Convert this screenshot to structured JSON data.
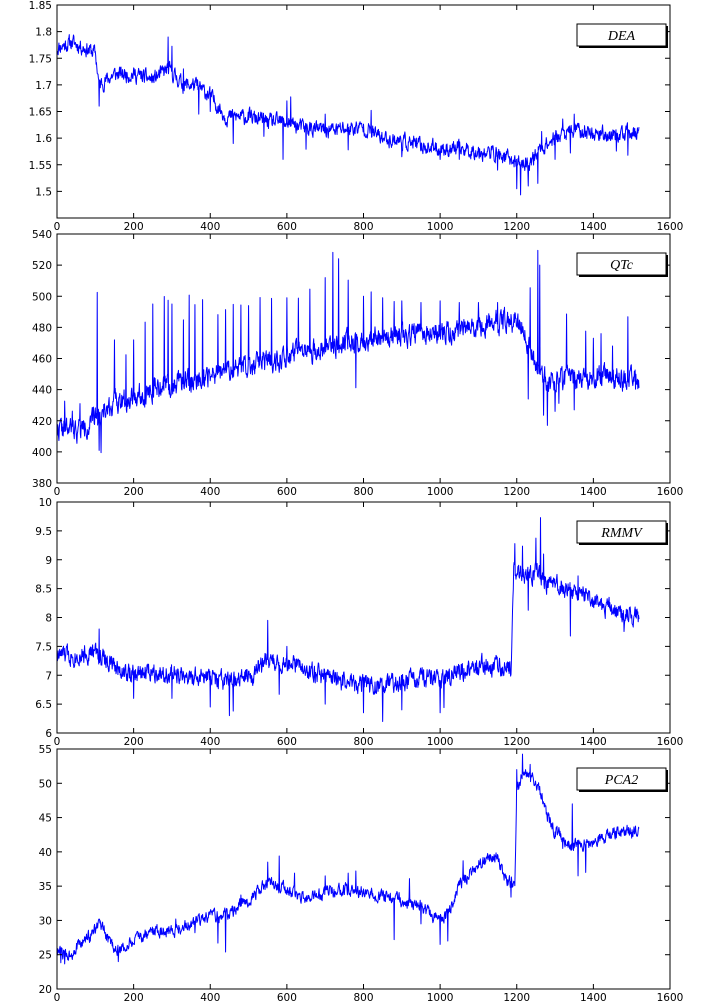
{
  "line_color": "#0000ff",
  "chart_data": [
    {
      "type": "line",
      "series": [
        {
          "name": "DEA"
        }
      ],
      "legend": "top-right",
      "xlim": [
        0,
        1600
      ],
      "ylim": [
        1.45,
        1.85
      ],
      "xticks": [
        0,
        200,
        400,
        600,
        800,
        1000,
        1200,
        1400,
        1600
      ],
      "yticks": [
        1.5,
        1.55,
        1.6,
        1.65,
        1.7,
        1.75,
        1.8,
        1.85
      ],
      "grid": false,
      "trend": [
        [
          0,
          1.77
        ],
        [
          20,
          1.775
        ],
        [
          40,
          1.78
        ],
        [
          70,
          1.77
        ],
        [
          100,
          1.76
        ],
        [
          110,
          1.7
        ],
        [
          150,
          1.72
        ],
        [
          200,
          1.72
        ],
        [
          250,
          1.71
        ],
        [
          290,
          1.73
        ],
        [
          330,
          1.7
        ],
        [
          360,
          1.7
        ],
        [
          400,
          1.68
        ],
        [
          440,
          1.64
        ],
        [
          500,
          1.64
        ],
        [
          560,
          1.63
        ],
        [
          600,
          1.63
        ],
        [
          640,
          1.62
        ],
        [
          700,
          1.615
        ],
        [
          800,
          1.62
        ],
        [
          850,
          1.6
        ],
        [
          900,
          1.595
        ],
        [
          950,
          1.585
        ],
        [
          1000,
          1.58
        ],
        [
          1050,
          1.58
        ],
        [
          1100,
          1.575
        ],
        [
          1150,
          1.57
        ],
        [
          1200,
          1.555
        ],
        [
          1230,
          1.55
        ],
        [
          1260,
          1.58
        ],
        [
          1300,
          1.6
        ],
        [
          1350,
          1.615
        ],
        [
          1400,
          1.61
        ],
        [
          1450,
          1.605
        ],
        [
          1520,
          1.61
        ]
      ],
      "noise": 0.012,
      "spikes": [
        [
          110,
          -0.04
        ],
        [
          290,
          0.06
        ],
        [
          300,
          0.05
        ],
        [
          330,
          0.03
        ],
        [
          370,
          -0.05
        ],
        [
          400,
          -0.03
        ],
        [
          460,
          -0.05
        ],
        [
          540,
          -0.03
        ],
        [
          590,
          -0.07
        ],
        [
          600,
          0.04
        ],
        [
          610,
          0.05
        ],
        [
          650,
          -0.04
        ],
        [
          700,
          0.03
        ],
        [
          760,
          -0.04
        ],
        [
          820,
          0.04
        ],
        [
          900,
          -0.03
        ],
        [
          1000,
          -0.02
        ],
        [
          1050,
          -0.02
        ],
        [
          1150,
          -0.03
        ],
        [
          1200,
          -0.05
        ],
        [
          1210,
          -0.06
        ],
        [
          1230,
          -0.04
        ],
        [
          1255,
          -0.06
        ],
        [
          1265,
          0.03
        ],
        [
          1300,
          -0.04
        ],
        [
          1320,
          0.03
        ],
        [
          1340,
          -0.04
        ],
        [
          1350,
          0.03
        ],
        [
          1460,
          -0.03
        ],
        [
          1490,
          -0.04
        ]
      ],
      "seed": 11
    },
    {
      "type": "line",
      "series": [
        {
          "name": "QTc"
        }
      ],
      "legend": "top-right",
      "xlim": [
        0,
        1600
      ],
      "ylim": [
        380,
        540
      ],
      "xticks": [
        0,
        200,
        400,
        600,
        800,
        1000,
        1200,
        1400,
        1600
      ],
      "yticks": [
        380,
        400,
        420,
        440,
        460,
        480,
        500,
        520,
        540
      ],
      "grid": false,
      "trend": [
        [
          0,
          415
        ],
        [
          50,
          414
        ],
        [
          90,
          418
        ],
        [
          100,
          424
        ],
        [
          120,
          426
        ],
        [
          150,
          432
        ],
        [
          200,
          436
        ],
        [
          250,
          440
        ],
        [
          300,
          443
        ],
        [
          350,
          446
        ],
        [
          400,
          449
        ],
        [
          450,
          452
        ],
        [
          500,
          456
        ],
        [
          550,
          458
        ],
        [
          600,
          461
        ],
        [
          650,
          464
        ],
        [
          700,
          467
        ],
        [
          750,
          470
        ],
        [
          800,
          472
        ],
        [
          850,
          474
        ],
        [
          900,
          475
        ],
        [
          950,
          476
        ],
        [
          1000,
          477
        ],
        [
          1050,
          478
        ],
        [
          1100,
          481
        ],
        [
          1150,
          484
        ],
        [
          1200,
          484
        ],
        [
          1220,
          476
        ],
        [
          1240,
          462
        ],
        [
          1260,
          452
        ],
        [
          1280,
          445
        ],
        [
          1300,
          446
        ],
        [
          1350,
          447
        ],
        [
          1400,
          448
        ],
        [
          1450,
          448
        ],
        [
          1520,
          446
        ]
      ],
      "noise": 6,
      "spikes": [
        [
          20,
          18
        ],
        [
          40,
          12
        ],
        [
          60,
          16
        ],
        [
          105,
          78
        ],
        [
          110,
          -24
        ],
        [
          115,
          -26
        ],
        [
          150,
          40
        ],
        [
          180,
          28
        ],
        [
          200,
          36
        ],
        [
          230,
          45
        ],
        [
          250,
          55
        ],
        [
          280,
          58
        ],
        [
          290,
          55
        ],
        [
          300,
          52
        ],
        [
          330,
          40
        ],
        [
          345,
          55
        ],
        [
          360,
          48
        ],
        [
          380,
          50
        ],
        [
          420,
          38
        ],
        [
          440,
          40
        ],
        [
          460,
          42
        ],
        [
          480,
          40
        ],
        [
          500,
          38
        ],
        [
          530,
          42
        ],
        [
          560,
          40
        ],
        [
          600,
          38
        ],
        [
          630,
          36
        ],
        [
          660,
          40
        ],
        [
          700,
          45
        ],
        [
          720,
          60
        ],
        [
          735,
          55
        ],
        [
          760,
          40
        ],
        [
          780,
          -30
        ],
        [
          800,
          28
        ],
        [
          820,
          30
        ],
        [
          850,
          25
        ],
        [
          880,
          22
        ],
        [
          900,
          22
        ],
        [
          950,
          20
        ],
        [
          1000,
          20
        ],
        [
          1050,
          18
        ],
        [
          1100,
          15
        ],
        [
          1150,
          12
        ],
        [
          1230,
          -35
        ],
        [
          1235,
          40
        ],
        [
          1255,
          75
        ],
        [
          1260,
          68
        ],
        [
          1270,
          -25
        ],
        [
          1280,
          -28
        ],
        [
          1300,
          -20
        ],
        [
          1310,
          -15
        ],
        [
          1330,
          42
        ],
        [
          1350,
          -20
        ],
        [
          1380,
          30
        ],
        [
          1400,
          25
        ],
        [
          1420,
          28
        ],
        [
          1450,
          20
        ],
        [
          1490,
          40
        ],
        [
          1510,
          -6
        ]
      ],
      "seed": 22
    },
    {
      "type": "line",
      "series": [
        {
          "name": "RMMV"
        }
      ],
      "legend": "top-right",
      "xlim": [
        0,
        1600
      ],
      "ylim": [
        6,
        10
      ],
      "xticks": [
        0,
        200,
        400,
        600,
        800,
        1000,
        1200,
        1400,
        1600
      ],
      "yticks": [
        6,
        6.5,
        7,
        7.5,
        8,
        8.5,
        9,
        9.5,
        10
      ],
      "grid": false,
      "trend": [
        [
          0,
          7.35
        ],
        [
          50,
          7.35
        ],
        [
          100,
          7.4
        ],
        [
          120,
          7.3
        ],
        [
          150,
          7.15
        ],
        [
          200,
          7.0
        ],
        [
          250,
          7.1
        ],
        [
          300,
          7.0
        ],
        [
          350,
          6.95
        ],
        [
          400,
          6.95
        ],
        [
          450,
          6.85
        ],
        [
          500,
          7.0
        ],
        [
          550,
          7.25
        ],
        [
          600,
          7.2
        ],
        [
          650,
          7.1
        ],
        [
          700,
          7.0
        ],
        [
          750,
          6.9
        ],
        [
          800,
          6.85
        ],
        [
          850,
          6.8
        ],
        [
          900,
          6.9
        ],
        [
          950,
          6.95
        ],
        [
          1000,
          6.9
        ],
        [
          1050,
          7.1
        ],
        [
          1100,
          7.2
        ],
        [
          1150,
          7.15
        ],
        [
          1185,
          7.1
        ],
        [
          1192,
          8.9
        ],
        [
          1220,
          8.7
        ],
        [
          1260,
          8.8
        ],
        [
          1280,
          8.6
        ],
        [
          1300,
          8.6
        ],
        [
          1350,
          8.45
        ],
        [
          1400,
          8.3
        ],
        [
          1450,
          8.1
        ],
        [
          1520,
          8.0
        ]
      ],
      "noise": 0.14,
      "spikes": [
        [
          110,
          0.45
        ],
        [
          200,
          -0.4
        ],
        [
          300,
          -0.4
        ],
        [
          400,
          -0.5
        ],
        [
          450,
          -0.55
        ],
        [
          460,
          -0.5
        ],
        [
          550,
          0.7
        ],
        [
          580,
          -0.55
        ],
        [
          600,
          0.3
        ],
        [
          700,
          -0.5
        ],
        [
          800,
          -0.5
        ],
        [
          850,
          -0.6
        ],
        [
          900,
          -0.5
        ],
        [
          1000,
          -0.55
        ],
        [
          1010,
          -0.5
        ],
        [
          1195,
          0.4
        ],
        [
          1215,
          0.5
        ],
        [
          1230,
          -0.6
        ],
        [
          1250,
          0.6
        ],
        [
          1262,
          0.95
        ],
        [
          1270,
          0.4
        ],
        [
          1340,
          -0.8
        ],
        [
          1360,
          0.3
        ],
        [
          1480,
          -0.3
        ]
      ],
      "seed": 33
    },
    {
      "type": "line",
      "series": [
        {
          "name": "PCA2"
        }
      ],
      "legend": "top-right",
      "xlim": [
        0,
        1600
      ],
      "ylim": [
        20,
        55
      ],
      "xticks": [
        0,
        200,
        400,
        600,
        800,
        1000,
        1200,
        1400,
        1600
      ],
      "yticks": [
        20,
        25,
        30,
        35,
        40,
        45,
        50,
        55
      ],
      "grid": false,
      "trend": [
        [
          0,
          25.5
        ],
        [
          30,
          25
        ],
        [
          60,
          26.5
        ],
        [
          90,
          28
        ],
        [
          110,
          29.5
        ],
        [
          130,
          27.5
        ],
        [
          160,
          25.5
        ],
        [
          200,
          27
        ],
        [
          250,
          28.5
        ],
        [
          300,
          28.5
        ],
        [
          350,
          29.5
        ],
        [
          400,
          30.5
        ],
        [
          450,
          31
        ],
        [
          500,
          33
        ],
        [
          550,
          35.5
        ],
        [
          600,
          34.5
        ],
        [
          650,
          33
        ],
        [
          700,
          34
        ],
        [
          750,
          34.5
        ],
        [
          800,
          34
        ],
        [
          850,
          33.5
        ],
        [
          900,
          33
        ],
        [
          950,
          32
        ],
        [
          1000,
          30
        ],
        [
          1020,
          31
        ],
        [
          1050,
          35
        ],
        [
          1100,
          38.5
        ],
        [
          1150,
          39
        ],
        [
          1170,
          36
        ],
        [
          1195,
          35
        ],
        [
          1200,
          49
        ],
        [
          1220,
          52
        ],
        [
          1240,
          51
        ],
        [
          1260,
          49
        ],
        [
          1280,
          45
        ],
        [
          1300,
          43
        ],
        [
          1340,
          41
        ],
        [
          1380,
          41
        ],
        [
          1420,
          42
        ],
        [
          1460,
          43
        ],
        [
          1520,
          43
        ]
      ],
      "noise": 0.75,
      "spikes": [
        [
          10,
          -1.5
        ],
        [
          20,
          -1.5
        ],
        [
          40,
          -1.2
        ],
        [
          160,
          -1.5
        ],
        [
          310,
          1.5
        ],
        [
          360,
          -1.5
        ],
        [
          420,
          -4
        ],
        [
          440,
          -5.5
        ],
        [
          480,
          1.5
        ],
        [
          550,
          3
        ],
        [
          580,
          4.5
        ],
        [
          620,
          3
        ],
        [
          700,
          2.5
        ],
        [
          760,
          2.5
        ],
        [
          780,
          3
        ],
        [
          880,
          -6
        ],
        [
          920,
          3.5
        ],
        [
          950,
          -2.5
        ],
        [
          1000,
          -3.5
        ],
        [
          1020,
          -4
        ],
        [
          1060,
          3
        ],
        [
          1185,
          -2
        ],
        [
          1200,
          3
        ],
        [
          1215,
          3
        ],
        [
          1235,
          1.5
        ],
        [
          1320,
          -1.5
        ],
        [
          1345,
          6
        ],
        [
          1360,
          -4.5
        ],
        [
          1380,
          -4
        ],
        [
          1500,
          -1
        ]
      ],
      "seed": 44
    }
  ]
}
